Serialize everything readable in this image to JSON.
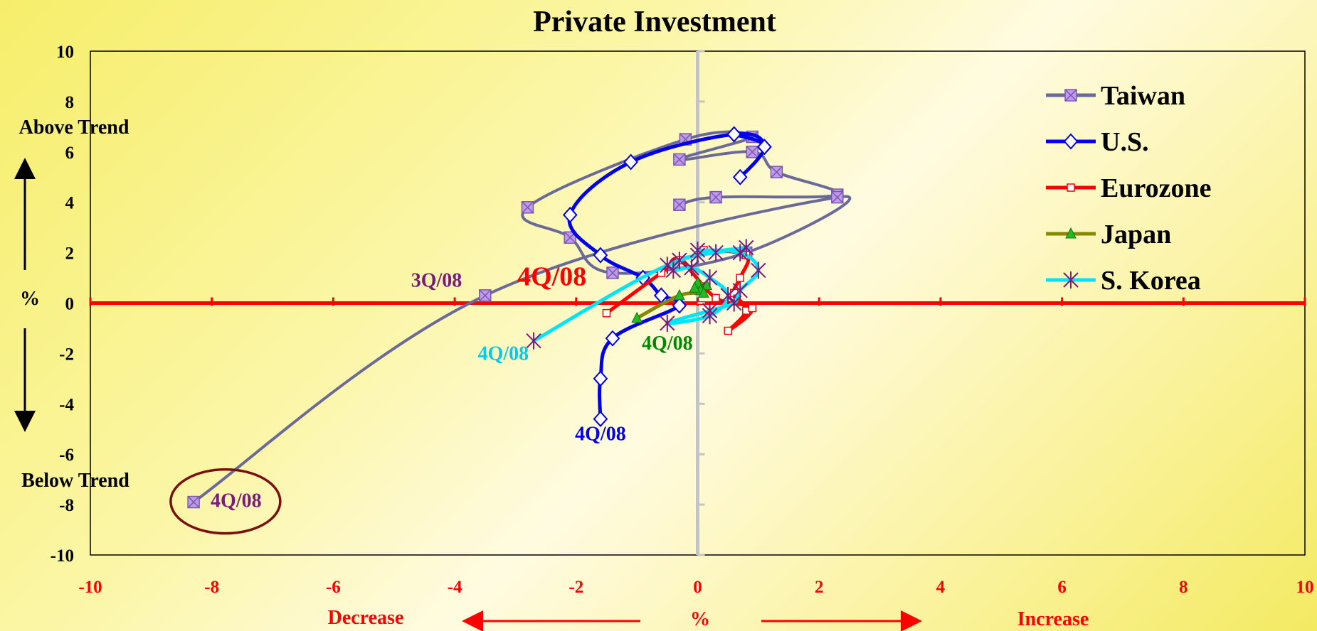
{
  "chart_data": {
    "type": "line",
    "title": "Private Investment",
    "xlim": [
      -10,
      10
    ],
    "ylim": [
      -10,
      10
    ],
    "x_ticks": [
      "-10",
      "-8",
      "-6",
      "-4",
      "-2",
      "0",
      "2",
      "4",
      "6",
      "8",
      "10"
    ],
    "y_ticks": [
      "10",
      "8",
      "6",
      "4",
      "2",
      "0",
      "-2",
      "-4",
      "-6",
      "-8",
      "-10"
    ],
    "xlabel": "%",
    "ylabel": "%",
    "x_decrease_label": "Decrease",
    "x_increase_label": "Increase",
    "y_above_label": "Above Trend",
    "y_below_label": "Below Trend",
    "legend_position": "right",
    "series": [
      {
        "name": "Taiwan",
        "color": "#6a6a9a",
        "marker": "square-x",
        "marker_fill": "#c09af0",
        "points": [
          [
            -0.3,
            3.9
          ],
          [
            0.3,
            4.2
          ],
          [
            2.3,
            4.3
          ],
          [
            1.3,
            5.2
          ],
          [
            0.9,
            6.0
          ],
          [
            -0.3,
            5.7
          ],
          [
            0.9,
            6.6
          ],
          [
            -0.2,
            6.5
          ],
          [
            -2.8,
            3.8
          ],
          [
            -2.1,
            2.6
          ],
          [
            -1.4,
            1.2
          ],
          [
            0.8,
            2.0
          ],
          [
            2.3,
            4.2
          ],
          [
            -3.5,
            0.3
          ],
          [
            -8.3,
            -7.9
          ]
        ]
      },
      {
        "name": "U.S.",
        "color": "#0000ee",
        "marker": "diamond",
        "marker_fill": "#ffffff",
        "points": [
          [
            0.6,
            6.7
          ],
          [
            1.1,
            6.2
          ],
          [
            0.7,
            5.0
          ],
          [
            1.1,
            6.2
          ],
          [
            0.6,
            6.7
          ],
          [
            -1.1,
            5.6
          ],
          [
            -2.1,
            3.5
          ],
          [
            -1.6,
            1.9
          ],
          [
            -0.9,
            1.0
          ],
          [
            -0.6,
            0.3
          ],
          [
            -0.3,
            -0.1
          ],
          [
            -1.4,
            -1.4
          ],
          [
            -1.6,
            -3.0
          ],
          [
            -1.6,
            -4.6
          ]
        ]
      },
      {
        "name": "Eurozone",
        "color": "#ff0000",
        "marker": "square",
        "marker_fill": "#ffffff",
        "points": [
          [
            0.1,
            2.1
          ],
          [
            0.8,
            1.9
          ],
          [
            0.7,
            1.0
          ],
          [
            0.6,
            0.4
          ],
          [
            0.8,
            -0.3
          ],
          [
            0.5,
            -1.1
          ],
          [
            0.9,
            -0.2
          ],
          [
            0.3,
            0.2
          ],
          [
            -0.3,
            1.7
          ],
          [
            -0.6,
            1.2
          ],
          [
            -1.5,
            -0.4
          ]
        ]
      },
      {
        "name": "Japan",
        "color": "#888800",
        "marker": "triangle",
        "marker_fill": "#22bb22",
        "points": [
          [
            0.0,
            0.8
          ],
          [
            0.15,
            0.7
          ],
          [
            0.05,
            0.5
          ],
          [
            -0.05,
            0.6
          ],
          [
            0.1,
            0.4
          ],
          [
            -0.3,
            0.3
          ],
          [
            -1.0,
            -0.6
          ]
        ]
      },
      {
        "name": "S. Korea",
        "color": "#00e5f5",
        "marker": "asterisk",
        "marker_fill": "#7a1a7a",
        "points": [
          [
            0.0,
            2.1
          ],
          [
            0.7,
            2.0
          ],
          [
            1.0,
            1.3
          ],
          [
            0.7,
            0.5
          ],
          [
            0.6,
            0.0
          ],
          [
            0.2,
            -0.3
          ],
          [
            -0.5,
            -0.8
          ],
          [
            0.2,
            -0.5
          ],
          [
            0.5,
            0.3
          ],
          [
            0.2,
            1.0
          ],
          [
            -0.1,
            1.4
          ],
          [
            -0.4,
            1.3
          ],
          [
            -0.3,
            1.7
          ],
          [
            0.0,
            1.9
          ],
          [
            0.3,
            2.0
          ],
          [
            0.8,
            2.2
          ],
          [
            -0.5,
            1.5
          ],
          [
            -2.7,
            -1.5
          ]
        ]
      }
    ],
    "annotations": [
      {
        "text": "3Q/08",
        "x": -4.3,
        "y": 0.65,
        "color": "#7a1a7a",
        "size": "medium"
      },
      {
        "text": "4Q/08",
        "x": -2.4,
        "y": 0.7,
        "color": "#ff0000",
        "size": "large"
      },
      {
        "text": "4Q/08",
        "x": -3.2,
        "y": -2.25,
        "color": "#00ccee",
        "size": "medium"
      },
      {
        "text": "4Q/08",
        "x": -0.5,
        "y": -1.85,
        "color": "#008800",
        "size": "medium"
      },
      {
        "text": "4Q/08",
        "x": -1.6,
        "y": -5.45,
        "color": "#0000ee",
        "size": "medium"
      },
      {
        "text": "4Q/08",
        "x": -7.6,
        "y": -8.1,
        "color": "#7a1a7a",
        "size": "medium",
        "circled": true
      }
    ]
  }
}
